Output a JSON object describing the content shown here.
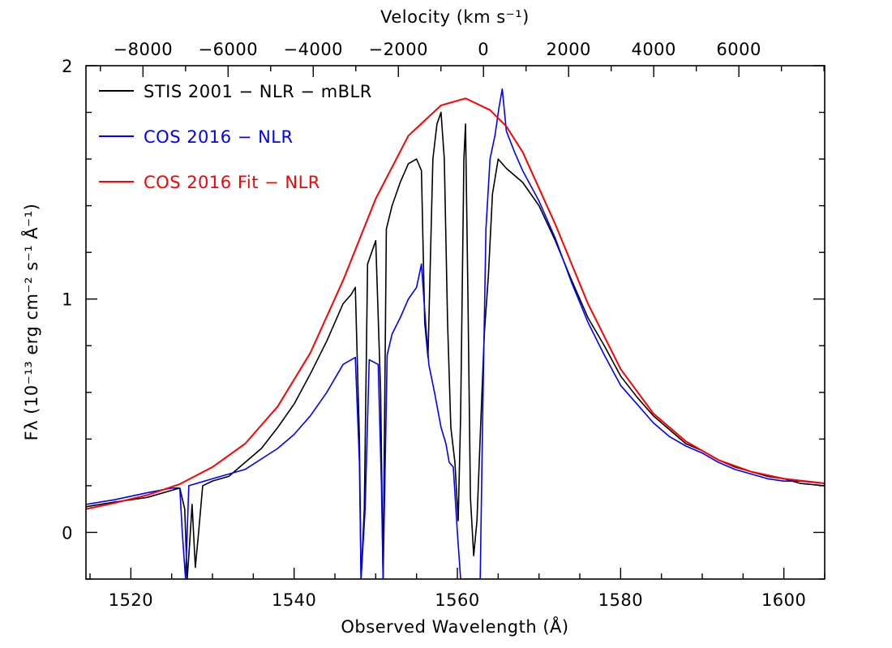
{
  "chart_data": {
    "type": "line",
    "title": "",
    "xlabel": "Observed Wavelength (Å)",
    "ylabel": "Fλ (10⁻¹³ erg cm⁻² s⁻¹ Å⁻¹)",
    "top_xlabel": "Velocity (km s⁻¹)",
    "xlim": [
      1514.5,
      1605
    ],
    "ylim": [
      -0.2,
      2.0
    ],
    "x_ticks": [
      1520,
      1540,
      1560,
      1580,
      1600
    ],
    "x_tick_labels": [
      "1520",
      "1540",
      "1560",
      "1580",
      "1600"
    ],
    "x_minor_step": 5,
    "y_ticks": [
      0,
      1,
      2
    ],
    "y_tick_labels": [
      "0",
      "1",
      "2"
    ],
    "y_minor_step": 0.2,
    "velocity_ticks": [
      -8000,
      -6000,
      -4000,
      -2000,
      0,
      2000,
      4000,
      6000
    ],
    "velocity_tick_labels": [
      "−8000",
      "−6000",
      "−4000",
      "−2000",
      "0",
      "2000",
      "4000",
      "6000"
    ],
    "velocity_minor_step": 1000,
    "velocity_ref_wavelength": 1563.2,
    "grid": false,
    "legend_position": "top-left",
    "series": [
      {
        "name": "STIS 2001 − NLR − mBLR",
        "color": "#000000",
        "points": [
          [
            1514.5,
            0.11
          ],
          [
            1518,
            0.13
          ],
          [
            1522,
            0.15
          ],
          [
            1526,
            0.19
          ],
          [
            1526.6,
            0.1
          ],
          [
            1526.9,
            -0.2
          ],
          [
            1527.2,
            -0.05
          ],
          [
            1527.5,
            0.12
          ],
          [
            1527.9,
            -0.15
          ],
          [
            1528.3,
            0.0
          ],
          [
            1528.8,
            0.2
          ],
          [
            1530,
            0.22
          ],
          [
            1532,
            0.24
          ],
          [
            1534,
            0.3
          ],
          [
            1536,
            0.36
          ],
          [
            1538,
            0.45
          ],
          [
            1540,
            0.55
          ],
          [
            1542,
            0.68
          ],
          [
            1544,
            0.82
          ],
          [
            1546,
            0.98
          ],
          [
            1547,
            1.02
          ],
          [
            1547.5,
            1.05
          ],
          [
            1548.0,
            0.4
          ],
          [
            1548.2,
            -0.2
          ],
          [
            1548.6,
            0.1
          ],
          [
            1549.0,
            1.15
          ],
          [
            1550,
            1.25
          ],
          [
            1550.6,
            0.6
          ],
          [
            1550.9,
            -0.2
          ],
          [
            1551.3,
            1.3
          ],
          [
            1552,
            1.4
          ],
          [
            1553,
            1.5
          ],
          [
            1554,
            1.58
          ],
          [
            1555,
            1.6
          ],
          [
            1555.6,
            1.55
          ],
          [
            1556.0,
            0.9
          ],
          [
            1556.4,
            0.75
          ],
          [
            1557.0,
            1.6
          ],
          [
            1557.5,
            1.75
          ],
          [
            1558.0,
            1.8
          ],
          [
            1558.4,
            1.6
          ],
          [
            1558.8,
            0.9
          ],
          [
            1559.2,
            0.45
          ],
          [
            1559.7,
            0.3
          ],
          [
            1560.1,
            0.05
          ],
          [
            1560.4,
            0.5
          ],
          [
            1560.8,
            1.6
          ],
          [
            1561.0,
            1.75
          ],
          [
            1561.3,
            1.0
          ],
          [
            1561.6,
            0.15
          ],
          [
            1562.0,
            -0.1
          ],
          [
            1562.4,
            0.05
          ],
          [
            1562.9,
            0.5
          ],
          [
            1563.3,
            0.85
          ],
          [
            1563.8,
            1.1
          ],
          [
            1564.3,
            1.45
          ],
          [
            1565.0,
            1.6
          ],
          [
            1566,
            1.56
          ],
          [
            1567,
            1.53
          ],
          [
            1568,
            1.5
          ],
          [
            1570,
            1.4
          ],
          [
            1572,
            1.25
          ],
          [
            1574,
            1.08
          ],
          [
            1576,
            0.92
          ],
          [
            1578,
            0.8
          ],
          [
            1580,
            0.67
          ],
          [
            1582,
            0.58
          ],
          [
            1584,
            0.5
          ],
          [
            1586,
            0.44
          ],
          [
            1588,
            0.38
          ],
          [
            1590,
            0.35
          ],
          [
            1592,
            0.31
          ],
          [
            1594,
            0.28
          ],
          [
            1596,
            0.26
          ],
          [
            1598,
            0.24
          ],
          [
            1600,
            0.23
          ],
          [
            1602,
            0.21
          ],
          [
            1605,
            0.2
          ]
        ]
      },
      {
        "name": "COS 2016 − NLR",
        "color": "#0000ff",
        "points": [
          [
            1514.5,
            0.12
          ],
          [
            1518,
            0.14
          ],
          [
            1522,
            0.17
          ],
          [
            1525,
            0.19
          ],
          [
            1526.0,
            0.19
          ],
          [
            1526.3,
            0.0
          ],
          [
            1526.7,
            -0.2
          ],
          [
            1527.1,
            0.2
          ],
          [
            1530,
            0.23
          ],
          [
            1534,
            0.27
          ],
          [
            1538,
            0.36
          ],
          [
            1540,
            0.42
          ],
          [
            1542,
            0.5
          ],
          [
            1544,
            0.6
          ],
          [
            1546,
            0.72
          ],
          [
            1547.5,
            0.75
          ],
          [
            1548.0,
            0.3
          ],
          [
            1548.2,
            -0.2
          ],
          [
            1548.7,
            0.1
          ],
          [
            1549.2,
            0.74
          ],
          [
            1550.3,
            0.72
          ],
          [
            1550.7,
            0.2
          ],
          [
            1550.9,
            -0.2
          ],
          [
            1551.4,
            0.76
          ],
          [
            1552,
            0.85
          ],
          [
            1553,
            0.92
          ],
          [
            1554,
            1.0
          ],
          [
            1555,
            1.05
          ],
          [
            1555.6,
            1.15
          ],
          [
            1556.0,
            0.95
          ],
          [
            1556.5,
            0.72
          ],
          [
            1557.2,
            0.6
          ],
          [
            1558.0,
            0.45
          ],
          [
            1558.6,
            0.38
          ],
          [
            1559.0,
            0.3
          ],
          [
            1559.5,
            0.28
          ],
          [
            1560.0,
            0.0
          ],
          [
            1560.4,
            -0.2
          ],
          [
            1562.8,
            -0.2
          ],
          [
            1563.1,
            0.5
          ],
          [
            1563.5,
            1.3
          ],
          [
            1564.0,
            1.6
          ],
          [
            1564.6,
            1.7
          ],
          [
            1565.1,
            1.82
          ],
          [
            1565.5,
            1.9
          ],
          [
            1566,
            1.72
          ],
          [
            1567,
            1.63
          ],
          [
            1568,
            1.55
          ],
          [
            1570,
            1.42
          ],
          [
            1572,
            1.26
          ],
          [
            1574,
            1.07
          ],
          [
            1576,
            0.9
          ],
          [
            1578,
            0.76
          ],
          [
            1580,
            0.63
          ],
          [
            1582,
            0.55
          ],
          [
            1584,
            0.47
          ],
          [
            1586,
            0.41
          ],
          [
            1588,
            0.37
          ],
          [
            1590,
            0.34
          ],
          [
            1592,
            0.3
          ],
          [
            1594,
            0.27
          ],
          [
            1596,
            0.25
          ],
          [
            1598,
            0.23
          ],
          [
            1600,
            0.22
          ],
          [
            1602,
            0.22
          ],
          [
            1605,
            0.21
          ]
        ]
      },
      {
        "name": "COS 2016 Fit − NLR",
        "color": "#ff0000",
        "points": [
          [
            1514.5,
            0.1
          ],
          [
            1518,
            0.126
          ],
          [
            1522,
            0.16
          ],
          [
            1526,
            0.207
          ],
          [
            1530,
            0.28
          ],
          [
            1534,
            0.38
          ],
          [
            1538,
            0.54
          ],
          [
            1542,
            0.77
          ],
          [
            1546,
            1.08
          ],
          [
            1550,
            1.43
          ],
          [
            1554,
            1.7
          ],
          [
            1558,
            1.83
          ],
          [
            1561,
            1.86
          ],
          [
            1564,
            1.81
          ],
          [
            1566,
            1.74
          ],
          [
            1568,
            1.63
          ],
          [
            1572,
            1.32
          ],
          [
            1576,
            0.98
          ],
          [
            1580,
            0.7
          ],
          [
            1584,
            0.51
          ],
          [
            1588,
            0.39
          ],
          [
            1592,
            0.31
          ],
          [
            1596,
            0.26
          ],
          [
            1600,
            0.23
          ],
          [
            1605,
            0.21
          ]
        ]
      }
    ]
  }
}
